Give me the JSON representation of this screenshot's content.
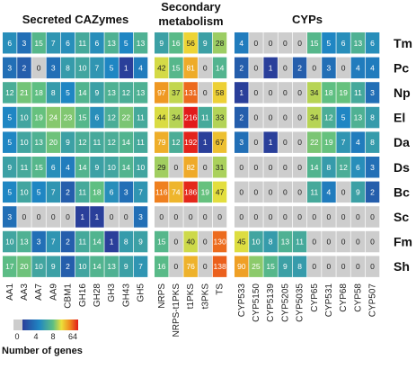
{
  "chart_data": {
    "type": "heatmap",
    "groups": [
      {
        "title": "Secreted CAZymes",
        "columns": [
          "AA1",
          "AA3",
          "AA7",
          "AA9",
          "CBM1",
          "GH16",
          "GH28",
          "GH3",
          "GH43",
          "GH5"
        ]
      },
      {
        "title": "Secondary\nmetabolism",
        "columns": [
          "NRPS",
          "NRPS-t1PKS",
          "t1PKS",
          "t3PKS",
          "TS"
        ]
      },
      {
        "title": "CYPs",
        "columns": [
          "CYP533",
          "CYP5150",
          "CYP5139",
          "CYP5205",
          "CYP5035",
          "CYP65",
          "CYP531",
          "CYP68",
          "CYP58",
          "CYP507"
        ]
      }
    ],
    "rows": [
      "Tm",
      "Pc",
      "Np",
      "El",
      "Da",
      "Ds",
      "Bc",
      "Sc",
      "Fm",
      "Sh"
    ],
    "values": [
      [
        6,
        3,
        15,
        7,
        6,
        11,
        6,
        13,
        5,
        13,
        9,
        16,
        56,
        9,
        28,
        4,
        0,
        0,
        0,
        0,
        15,
        5,
        6,
        13,
        6
      ],
      [
        3,
        2,
        0,
        3,
        8,
        10,
        7,
        5,
        1,
        4,
        42,
        15,
        81,
        0,
        14,
        2,
        0,
        1,
        0,
        2,
        0,
        3,
        0,
        4,
        4
      ],
      [
        12,
        21,
        18,
        8,
        5,
        14,
        9,
        13,
        12,
        13,
        97,
        37,
        131,
        0,
        58,
        1,
        0,
        0,
        0,
        0,
        34,
        18,
        19,
        11,
        3
      ],
      [
        5,
        10,
        19,
        24,
        23,
        15,
        6,
        12,
        22,
        11,
        44,
        34,
        216,
        11,
        33,
        2,
        0,
        0,
        0,
        0,
        34,
        12,
        5,
        13,
        8
      ],
      [
        5,
        10,
        13,
        20,
        9,
        12,
        11,
        12,
        14,
        11,
        79,
        12,
        192,
        1,
        67,
        3,
        0,
        1,
        0,
        0,
        22,
        19,
        7,
        4,
        8
      ],
      [
        9,
        11,
        15,
        6,
        4,
        14,
        9,
        10,
        14,
        10,
        29,
        0,
        82,
        0,
        31,
        0,
        0,
        0,
        0,
        0,
        14,
        8,
        12,
        6,
        3
      ],
      [
        5,
        10,
        5,
        7,
        2,
        11,
        18,
        6,
        3,
        7,
        116,
        74,
        186,
        19,
        47,
        0,
        0,
        0,
        0,
        0,
        11,
        4,
        0,
        9,
        2
      ],
      [
        3,
        0,
        0,
        0,
        0,
        1,
        1,
        0,
        0,
        3,
        0,
        0,
        0,
        0,
        0,
        0,
        0,
        0,
        0,
        0,
        0,
        0,
        0,
        0,
        0
      ],
      [
        10,
        13,
        3,
        7,
        2,
        11,
        14,
        1,
        8,
        9,
        15,
        0,
        40,
        0,
        130,
        45,
        10,
        8,
        13,
        11,
        0,
        0,
        0,
        0,
        0
      ],
      [
        17,
        20,
        10,
        9,
        2,
        10,
        14,
        13,
        9,
        7,
        16,
        0,
        76,
        0,
        138,
        90,
        25,
        15,
        9,
        8,
        0,
        0,
        0,
        0,
        0
      ]
    ],
    "legend": {
      "title": "Number of genes",
      "ticks": [
        "0",
        "4",
        "8",
        "64"
      ]
    }
  },
  "colors": {
    "zero": "#cdcdcd",
    "scale": [
      "#2a3f9a",
      "#1f86c3",
      "#5fbf82",
      "#ece03a",
      "#f08a1f",
      "#e21b1b"
    ]
  }
}
